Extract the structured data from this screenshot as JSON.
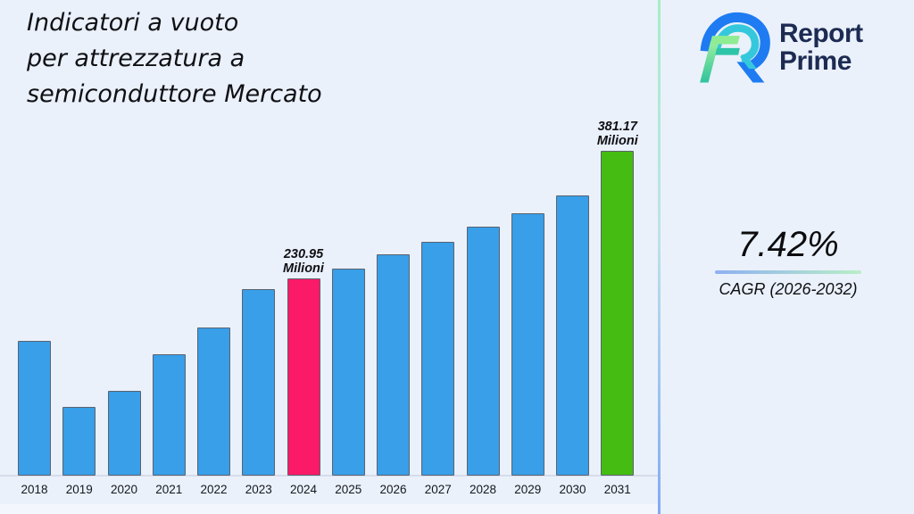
{
  "page": {
    "background": "#eaf1fb"
  },
  "title": {
    "text": "Indicatori a vuoto\nper attrezzatura a\nsemiconduttore Mercato"
  },
  "logo": {
    "line1": "Report",
    "line2": "Prime"
  },
  "cagr": {
    "value": "7.42%",
    "label": "CAGR (2026-2032)"
  },
  "chart_data": {
    "type": "bar",
    "title": "Indicatori a vuoto per attrezzatura a semiconduttore Mercato",
    "unit": "Milioni",
    "categories": [
      "2018",
      "2019",
      "2020",
      "2021",
      "2022",
      "2023",
      "2024",
      "2025",
      "2026",
      "2027",
      "2028",
      "2029",
      "2030",
      "2031"
    ],
    "values": [
      157.6,
      80.5,
      99.4,
      142.9,
      174.0,
      218.5,
      230.95,
      243.4,
      260.0,
      274.4,
      292.0,
      307.6,
      329.3,
      381.17
    ],
    "xlabel": "",
    "ylabel": "",
    "ylim": [
      0,
      420
    ],
    "grid": false,
    "legend": null,
    "bar_color_default": "#389fe8",
    "highlight_colors": {
      "2024": "#fb1a67",
      "2031": "#45bc11"
    },
    "annotations": [
      {
        "category": "2024",
        "line1": "230.95",
        "line2": "Milioni"
      },
      {
        "category": "2031",
        "line1": "381.17",
        "line2": "Milioni"
      }
    ]
  },
  "colors": {
    "background": "#eaf1fb",
    "bar_default": "#389fe8",
    "bar_highlight_2024": "#fb1a67",
    "bar_highlight_2031": "#45bc11",
    "bar_border": "#5b6270",
    "divider_top": "#a5eec6",
    "divider_bottom": "#84a9f4",
    "underline_left": "#8fb0f2",
    "underline_right": "#b9eec6",
    "logo_navy": "#1d2b52",
    "logo_blue": "#1e7bf2",
    "logo_cyan": "#35c8dc",
    "logo_green": "#8fec93",
    "logo_teal": "#2ec4a8"
  }
}
